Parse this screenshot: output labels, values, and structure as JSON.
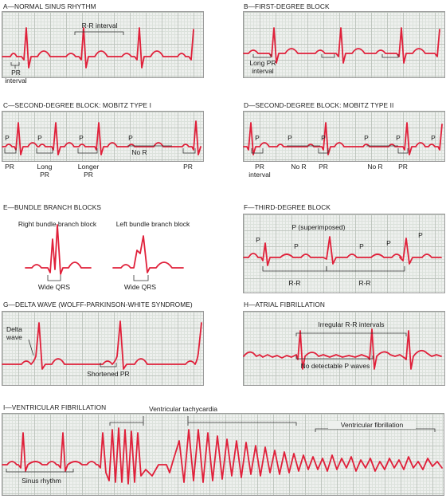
{
  "panels": {
    "a": {
      "title": "A—NORMAL SINUS RHYTHM",
      "labels": [
        "R-R interval",
        "PR\ninterval"
      ]
    },
    "b": {
      "title": "B—FIRST-DEGREE BLOCK",
      "labels": [
        "Long PR\ninterval"
      ]
    },
    "c": {
      "title": "C—SECOND-DEGREE BLOCK: MOBITZ TYPE I",
      "labels": [
        "P",
        "P",
        "P",
        "P",
        "PR",
        "Long\nPR",
        "Longer\nPR",
        "No R",
        "PR"
      ]
    },
    "d": {
      "title": "D—SECOND-DEGREE BLOCK: MOBITZ TYPE II",
      "labels": [
        "P",
        "P",
        "P",
        "P",
        "P",
        "P",
        "PR\ninterval",
        "No R",
        "PR",
        "No R",
        "PR"
      ]
    },
    "e": {
      "title": "E—BUNDLE BRANCH BLOCKS",
      "labels": [
        "Right bundle branch block",
        "Left bundle branch block",
        "Wide QRS",
        "Wide QRS"
      ]
    },
    "f": {
      "title": "F—THIRD-DEGREE BLOCK",
      "labels": [
        "P (superimposed)",
        "P",
        "P",
        "P",
        "P",
        "P",
        "R-R",
        "R-R"
      ]
    },
    "g": {
      "title": "G—DELTA WAVE (WOLFF-PARKINSON-WHITE SYNDROME)",
      "labels": [
        "Delta\nwave",
        "Shortened PR"
      ]
    },
    "h": {
      "title": "H—ATRIAL FIBRILLATION",
      "labels": [
        "Irregular R-R intervals",
        "No detectable P waves"
      ]
    },
    "i": {
      "title": "I—VENTRICULAR FIBRILLATION",
      "labels": [
        "Ventricular tachycardia",
        "Ventricular fibrillation",
        "Sinus rhythm"
      ]
    }
  },
  "colors": {
    "trace": "#e0203a",
    "grid_major": "#bfc6bf",
    "grid_minor": "#dce2dc",
    "panel_bg": "#eef0ee"
  }
}
